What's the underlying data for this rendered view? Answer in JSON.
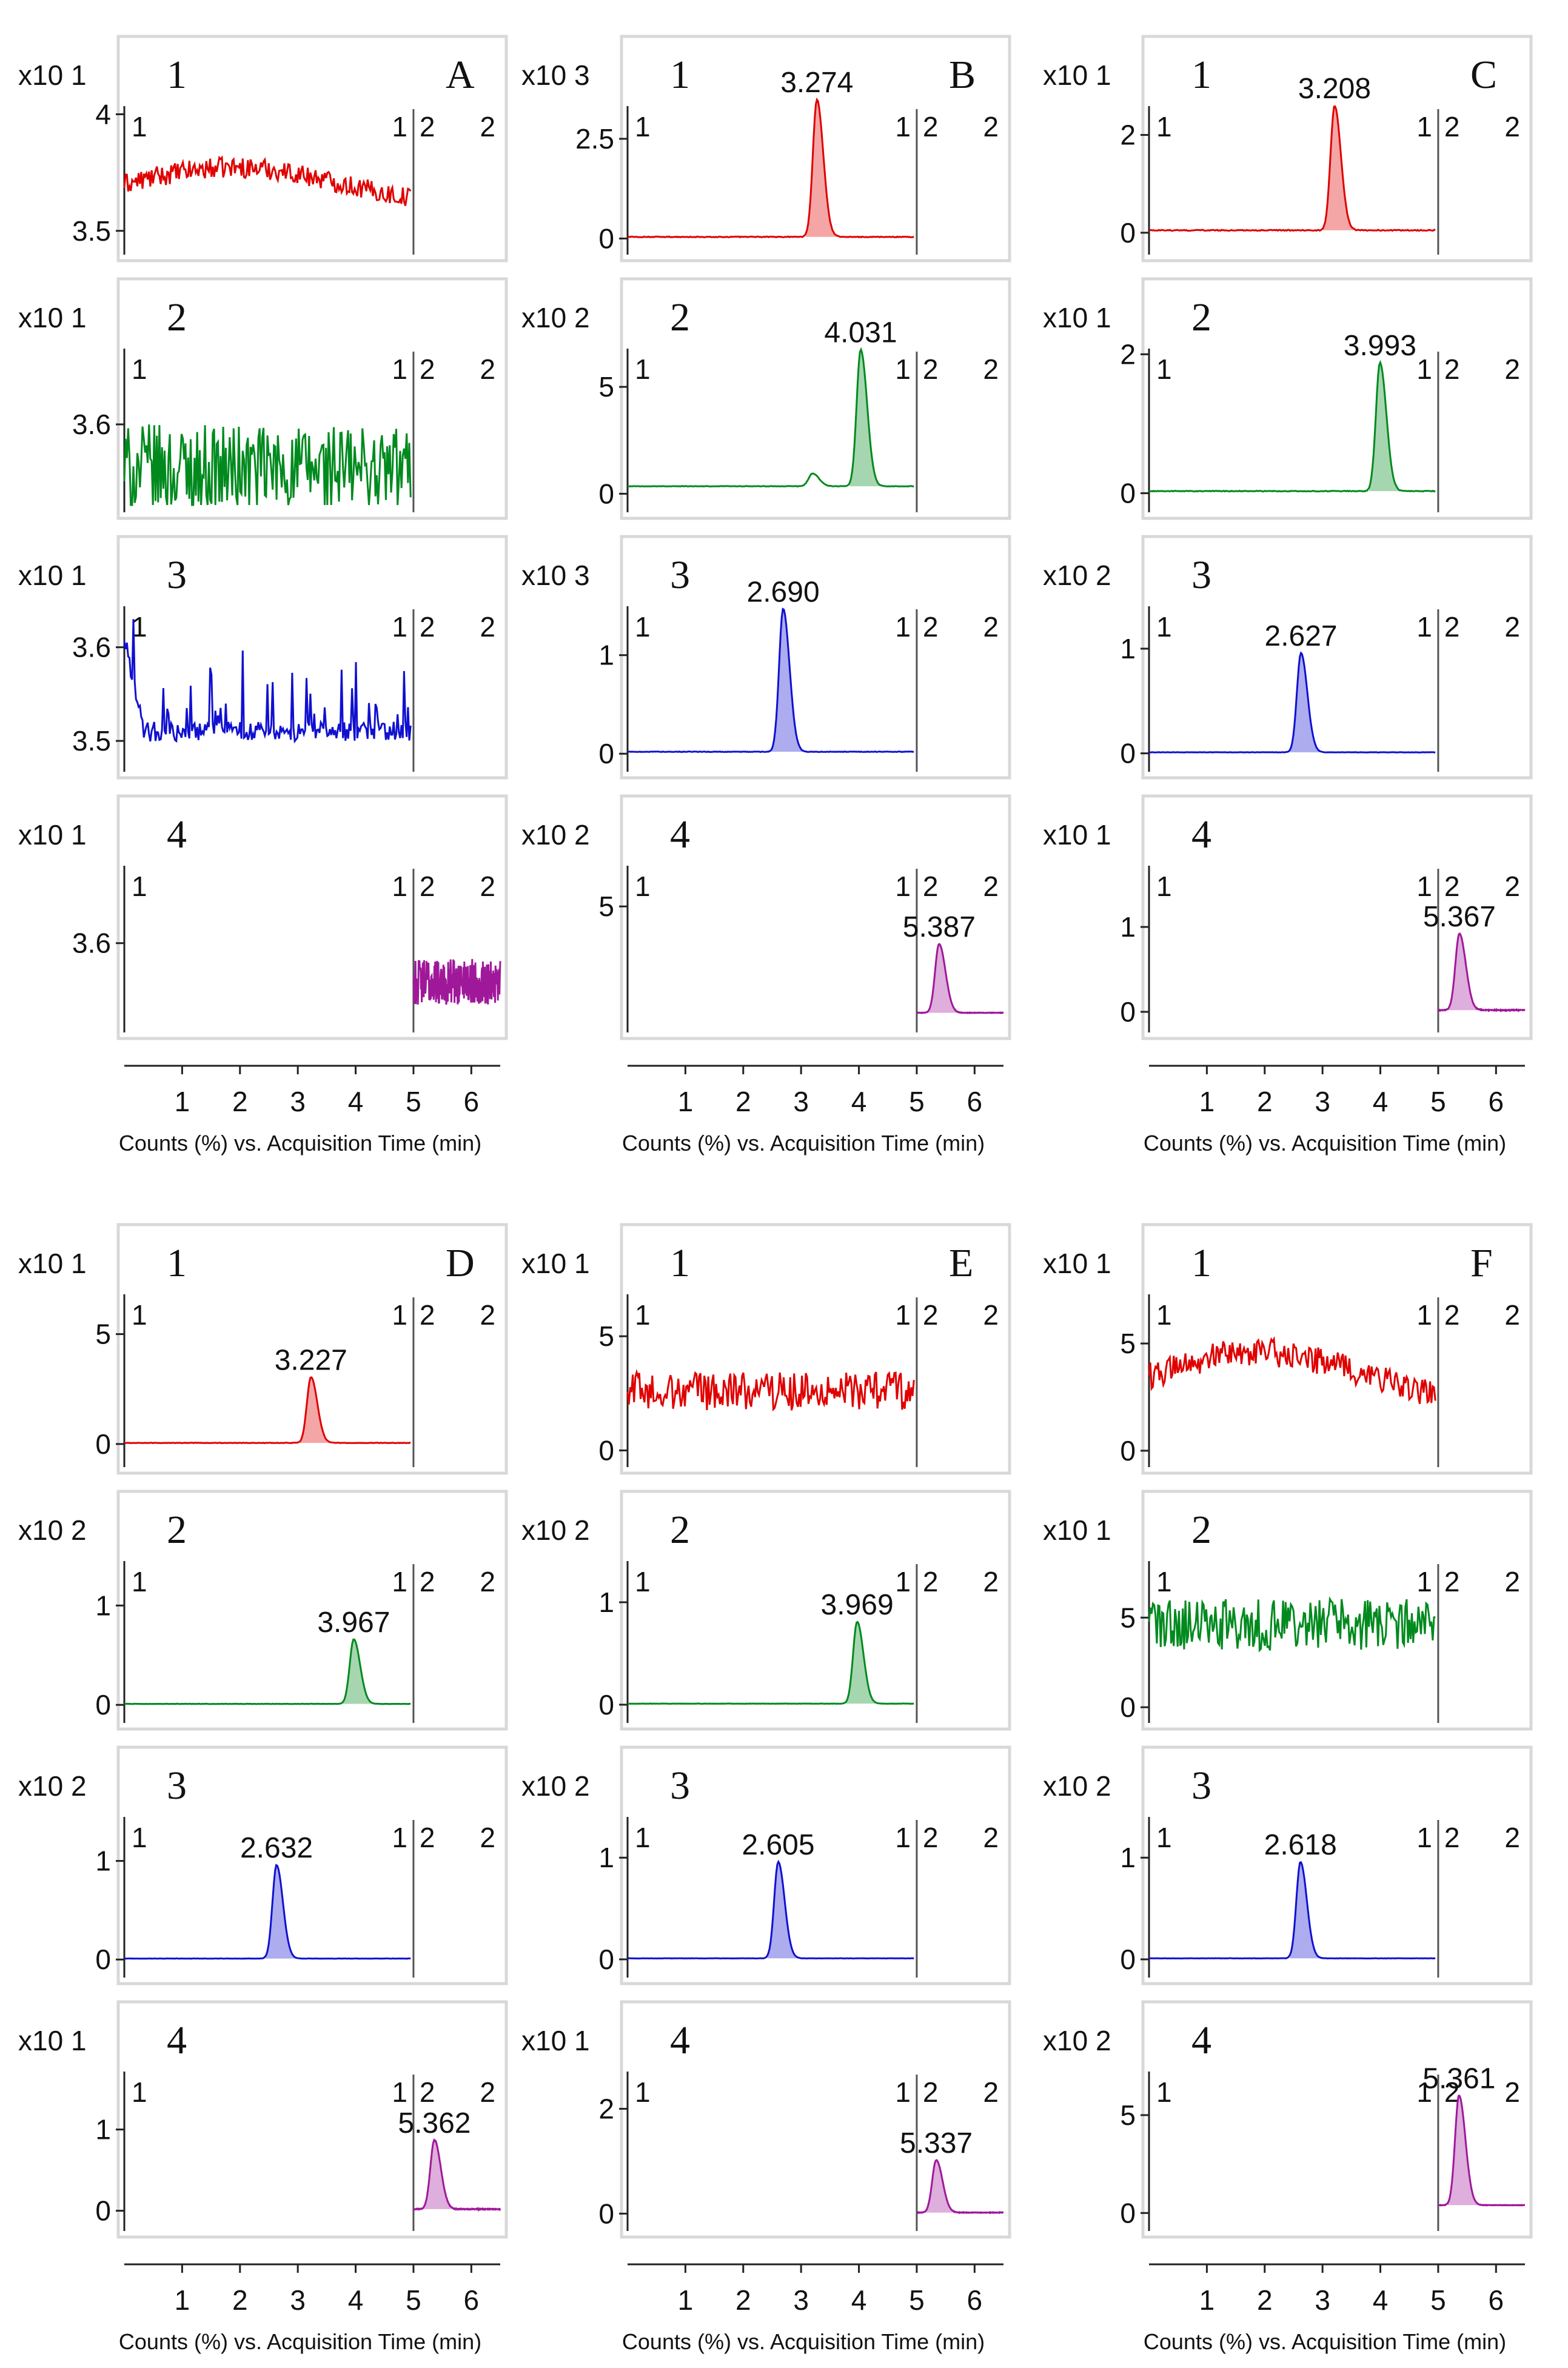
{
  "figure_title": "",
  "colors": {
    "trace1": "#e00000",
    "trace2": "#008a1e",
    "trace3": "#1010d0",
    "trace4": "#a0189a",
    "frame": "#d8d8d8",
    "divider": "#555555",
    "segment": "#888888"
  },
  "segment_labels": {
    "left": "1",
    "mid_left": "1",
    "mid_right": "2",
    "right": "2"
  },
  "x_axis": {
    "label": "Counts (%) vs. Acquisition Time (min)",
    "ticks": [
      "1",
      "2",
      "3",
      "4",
      "5",
      "6"
    ],
    "tick_values": [
      1,
      2,
      3,
      4,
      5,
      6
    ],
    "range": [
      0,
      6.5
    ],
    "divider_at": 5
  },
  "chart_data": [
    {
      "panel": "A",
      "type": "line",
      "title": "A",
      "traces": [
        {
          "label": "1",
          "scale": "x10 1",
          "shape": "drift",
          "ylim": [
            3.45,
            4.1
          ],
          "yticks": [
            {
              "v": 3.5,
              "t": "3.5"
            },
            {
              "v": 4,
              "t": "4"
            }
          ],
          "xrange": [
            0,
            4.95
          ],
          "base": 3.7,
          "amp": 0.04,
          "peaks": [],
          "color": "trace1"
        },
        {
          "label": "2",
          "scale": "x10 1",
          "shape": "noise",
          "ylim": [
            3.5,
            3.72
          ],
          "yticks": [
            {
              "v": 3.6,
              "t": "3.6"
            }
          ],
          "xrange": [
            0,
            4.95
          ],
          "base": 3.54,
          "amp": 0.05,
          "peaks": [],
          "color": "trace2"
        },
        {
          "label": "3",
          "scale": "x10 1",
          "shape": "spiky",
          "ylim": [
            3.48,
            3.66
          ],
          "yticks": [
            {
              "v": 3.5,
              "t": "3.5"
            },
            {
              "v": 3.6,
              "t": "3.6"
            }
          ],
          "xrange": [
            0,
            4.95
          ],
          "base": 3.51,
          "amp": 0.035,
          "peaks": [],
          "color": "trace3"
        },
        {
          "label": "4",
          "scale": "x10 1",
          "shape": "noise",
          "ylim": [
            3.5,
            3.72
          ],
          "yticks": [
            {
              "v": 3.6,
              "t": "3.6"
            }
          ],
          "xrange": [
            5.0,
            6.5
          ],
          "base": 3.55,
          "amp": 0.025,
          "peaks": [],
          "color": "trace4"
        }
      ]
    },
    {
      "panel": "B",
      "type": "line",
      "title": "B",
      "traces": [
        {
          "label": "1",
          "scale": "x10 3",
          "shape": "peak",
          "ylim": [
            -0.1,
            3.7
          ],
          "yticks": [
            {
              "v": 0,
              "t": "0"
            },
            {
              "v": 2.5,
              "t": "2.5"
            }
          ],
          "xrange": [
            0,
            4.95
          ],
          "base": 0.04,
          "amp": 0.02,
          "peaks": [
            {
              "rt": 3.274,
              "h": 3.45,
              "label": "3.274"
            }
          ],
          "color": "trace1"
        },
        {
          "label": "2",
          "scale": "x10 2",
          "shape": "peak",
          "ylim": [
            -0.3,
            7.5
          ],
          "yticks": [
            {
              "v": 0,
              "t": "0"
            },
            {
              "v": 5,
              "t": "5"
            }
          ],
          "xrange": [
            0,
            4.95
          ],
          "base": 0.35,
          "amp": 0.02,
          "peaks": [
            {
              "rt": 3.2,
              "h": 0.6,
              "label": ""
            },
            {
              "rt": 4.031,
              "h": 6.4,
              "label": "4.031"
            }
          ],
          "color": "trace2"
        },
        {
          "label": "3",
          "scale": "x10 3",
          "shape": "peak",
          "ylim": [
            -0.06,
            1.65
          ],
          "yticks": [
            {
              "v": 0,
              "t": "0"
            },
            {
              "v": 1,
              "t": "1"
            }
          ],
          "xrange": [
            0,
            4.95
          ],
          "base": 0.02,
          "amp": 0.005,
          "peaks": [
            {
              "rt": 2.69,
              "h": 1.45,
              "label": "2.690"
            }
          ],
          "color": "trace3"
        },
        {
          "label": "4",
          "scale": "x10 2",
          "shape": "peak",
          "ylim": [
            -0.3,
            7.6
          ],
          "yticks": [
            {
              "v": 5,
              "t": "5"
            }
          ],
          "xrange": [
            5.0,
            6.5
          ],
          "base": 0.05,
          "amp": 0.02,
          "peaks": [
            {
              "rt": 5.387,
              "h": 3.2,
              "label": "5.387"
            }
          ],
          "color": "trace4"
        }
      ]
    },
    {
      "panel": "C",
      "type": "line",
      "title": "C",
      "traces": [
        {
          "label": "1",
          "scale": "x10 1",
          "shape": "peak",
          "ylim": [
            -0.2,
            2.9
          ],
          "yticks": [
            {
              "v": 0,
              "t": "0"
            },
            {
              "v": 2,
              "t": "2"
            }
          ],
          "xrange": [
            0,
            4.95
          ],
          "base": 0.05,
          "amp": 0.02,
          "peaks": [
            {
              "rt": 3.208,
              "h": 2.55,
              "label": "3.208"
            }
          ],
          "color": "trace1"
        },
        {
          "label": "2",
          "scale": "x10 1",
          "shape": "peak",
          "ylim": [
            -0.1,
            2.3
          ],
          "yticks": [
            {
              "v": 0,
              "t": "0"
            },
            {
              "v": 2,
              "t": "2"
            }
          ],
          "xrange": [
            0,
            4.95
          ],
          "base": 0.03,
          "amp": 0.01,
          "peaks": [
            {
              "rt": 3.993,
              "h": 1.85,
              "label": "3.993"
            }
          ],
          "color": "trace2"
        },
        {
          "label": "3",
          "scale": "x10 2",
          "shape": "peak",
          "ylim": [
            -0.06,
            1.55
          ],
          "yticks": [
            {
              "v": 0,
              "t": "0"
            },
            {
              "v": 1,
              "t": "1"
            }
          ],
          "xrange": [
            0,
            4.95
          ],
          "base": 0.01,
          "amp": 0.003,
          "peaks": [
            {
              "rt": 2.627,
              "h": 0.95,
              "label": "2.627"
            }
          ],
          "color": "trace3"
        },
        {
          "label": "4",
          "scale": "x10 1",
          "shape": "peak",
          "ylim": [
            -0.1,
            1.9
          ],
          "yticks": [
            {
              "v": 0,
              "t": "0"
            },
            {
              "v": 1,
              "t": "1"
            }
          ],
          "xrange": [
            5.0,
            6.5
          ],
          "base": 0.02,
          "amp": 0.01,
          "peaks": [
            {
              "rt": 5.367,
              "h": 0.9,
              "label": "5.367"
            }
          ],
          "color": "trace4"
        }
      ]
    },
    {
      "panel": "D",
      "type": "line",
      "title": "D",
      "traces": [
        {
          "label": "1",
          "scale": "x10 1",
          "shape": "peak",
          "ylim": [
            -0.5,
            7.5
          ],
          "yticks": [
            {
              "v": 0,
              "t": "0"
            },
            {
              "v": 5,
              "t": "5"
            }
          ],
          "xrange": [
            0,
            4.95
          ],
          "base": 0.05,
          "amp": 0.02,
          "peaks": [
            {
              "rt": 3.227,
              "h": 3.0,
              "label": "3.227"
            }
          ],
          "color": "trace1"
        },
        {
          "label": "2",
          "scale": "x10 2",
          "shape": "peak",
          "ylim": [
            -0.06,
            1.6
          ],
          "yticks": [
            {
              "v": 0,
              "t": "0"
            },
            {
              "v": 1,
              "t": "1"
            }
          ],
          "xrange": [
            0,
            4.95
          ],
          "base": 0.01,
          "amp": 0.003,
          "peaks": [
            {
              "rt": 3.967,
              "h": 0.65,
              "label": "3.967"
            }
          ],
          "color": "trace2"
        },
        {
          "label": "3",
          "scale": "x10 2",
          "shape": "peak",
          "ylim": [
            -0.06,
            1.6
          ],
          "yticks": [
            {
              "v": 0,
              "t": "0"
            },
            {
              "v": 1,
              "t": "1"
            }
          ],
          "xrange": [
            0,
            4.95
          ],
          "base": 0.01,
          "amp": 0.003,
          "peaks": [
            {
              "rt": 2.632,
              "h": 0.95,
              "label": "2.632"
            }
          ],
          "color": "trace3"
        },
        {
          "label": "4",
          "scale": "x10 1",
          "shape": "peak",
          "ylim": [
            -0.1,
            1.9
          ],
          "yticks": [
            {
              "v": 0,
              "t": "0"
            },
            {
              "v": 1,
              "t": "1"
            }
          ],
          "xrange": [
            5.0,
            6.5
          ],
          "base": 0.02,
          "amp": 0.01,
          "peaks": [
            {
              "rt": 5.362,
              "h": 0.85,
              "label": "5.362"
            }
          ],
          "color": "trace4"
        }
      ]
    },
    {
      "panel": "E",
      "type": "line",
      "title": "E",
      "traces": [
        {
          "label": "1",
          "scale": "x10 1",
          "shape": "noise",
          "ylim": [
            -0.2,
            7.5
          ],
          "yticks": [
            {
              "v": 0,
              "t": "0"
            },
            {
              "v": 5,
              "t": "5"
            }
          ],
          "xrange": [
            0,
            4.95
          ],
          "base": 2.6,
          "amp": 0.7,
          "peaks": [],
          "color": "trace1"
        },
        {
          "label": "2",
          "scale": "x10 2",
          "shape": "peak",
          "ylim": [
            -0.06,
            1.55
          ],
          "yticks": [
            {
              "v": 0,
              "t": "0"
            },
            {
              "v": 1,
              "t": "1"
            }
          ],
          "xrange": [
            0,
            4.95
          ],
          "base": 0.01,
          "amp": 0.003,
          "peaks": [
            {
              "rt": 3.969,
              "h": 0.8,
              "label": "3.969"
            }
          ],
          "color": "trace2"
        },
        {
          "label": "3",
          "scale": "x10 2",
          "shape": "peak",
          "ylim": [
            -0.06,
            1.55
          ],
          "yticks": [
            {
              "v": 0,
              "t": "0"
            },
            {
              "v": 1,
              "t": "1"
            }
          ],
          "xrange": [
            0,
            4.95
          ],
          "base": 0.01,
          "amp": 0.003,
          "peaks": [
            {
              "rt": 2.605,
              "h": 0.95,
              "label": "2.605"
            }
          ],
          "color": "trace3"
        },
        {
          "label": "4",
          "scale": "x10 1",
          "shape": "peak",
          "ylim": [
            -0.1,
            3.0
          ],
          "yticks": [
            {
              "v": 0,
              "t": "0"
            },
            {
              "v": 2,
              "t": "2"
            }
          ],
          "xrange": [
            5.0,
            6.5
          ],
          "base": 0.02,
          "amp": 0.01,
          "peaks": [
            {
              "rt": 5.337,
              "h": 1.0,
              "label": "5.337"
            }
          ],
          "color": "trace4"
        }
      ]
    },
    {
      "panel": "F",
      "type": "line",
      "title": "F",
      "traces": [
        {
          "label": "1",
          "scale": "x10 1",
          "shape": "drift",
          "ylim": [
            -0.2,
            8.0
          ],
          "yticks": [
            {
              "v": 0,
              "t": "0"
            },
            {
              "v": 5,
              "t": "5"
            }
          ],
          "xrange": [
            0,
            4.95
          ],
          "base": 3.5,
          "amp": 0.6,
          "peaks": [],
          "color": "trace1"
        },
        {
          "label": "2",
          "scale": "x10 1",
          "shape": "noise",
          "ylim": [
            -0.2,
            9.0
          ],
          "yticks": [
            {
              "v": 0,
              "t": "0"
            },
            {
              "v": 5,
              "t": "5"
            }
          ],
          "xrange": [
            0,
            4.95
          ],
          "base": 4.6,
          "amp": 1.2,
          "peaks": [],
          "color": "trace2"
        },
        {
          "label": "3",
          "scale": "x10 2",
          "shape": "peak",
          "ylim": [
            -0.06,
            1.55
          ],
          "yticks": [
            {
              "v": 0,
              "t": "0"
            },
            {
              "v": 1,
              "t": "1"
            }
          ],
          "xrange": [
            0,
            4.95
          ],
          "base": 0.01,
          "amp": 0.003,
          "peaks": [
            {
              "rt": 2.618,
              "h": 0.95,
              "label": "2.618"
            }
          ],
          "color": "trace3"
        },
        {
          "label": "4",
          "scale": "x10 2",
          "shape": "peak",
          "ylim": [
            -0.3,
            8.0
          ],
          "yticks": [
            {
              "v": 0,
              "t": "0"
            },
            {
              "v": 5,
              "t": "5"
            }
          ],
          "xrange": [
            5.0,
            6.5
          ],
          "base": 0.4,
          "amp": 0.02,
          "peaks": [
            {
              "rt": 5.361,
              "h": 5.6,
              "label": "5.361"
            }
          ],
          "color": "trace4"
        }
      ]
    }
  ]
}
